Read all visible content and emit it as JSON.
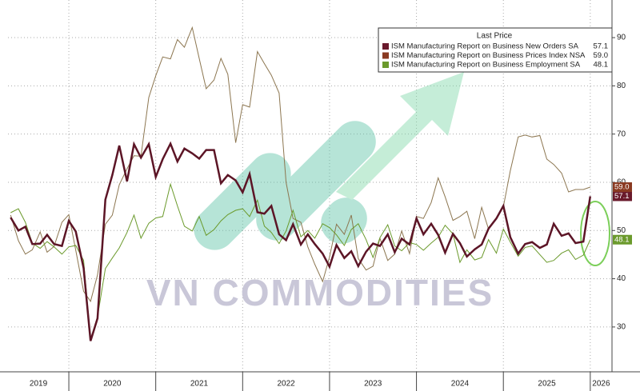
{
  "chart_data": {
    "type": "line",
    "watermark": "VN COMMODITIES",
    "legend_title": "Last Price",
    "x": [
      2019.33,
      2019.42,
      2019.5,
      2019.58,
      2019.67,
      2019.75,
      2019.83,
      2019.92,
      2020,
      2020.08,
      2020.17,
      2020.25,
      2020.33,
      2020.42,
      2020.5,
      2020.58,
      2020.67,
      2020.75,
      2020.83,
      2020.92,
      2021,
      2021.08,
      2021.17,
      2021.25,
      2021.33,
      2021.42,
      2021.5,
      2021.58,
      2021.67,
      2021.75,
      2021.83,
      2021.92,
      2022,
      2022.08,
      2022.17,
      2022.25,
      2022.33,
      2022.42,
      2022.5,
      2022.58,
      2022.67,
      2022.75,
      2022.83,
      2022.92,
      2023,
      2023.08,
      2023.17,
      2023.25,
      2023.33,
      2023.42,
      2023.5,
      2023.58,
      2023.67,
      2023.75,
      2023.83,
      2023.92,
      2024,
      2024.08,
      2024.17,
      2024.25,
      2024.33,
      2024.42,
      2024.5,
      2024.58,
      2024.67,
      2024.75,
      2024.83,
      2024.92,
      2025,
      2025.08,
      2025.17,
      2025.25,
      2025.33,
      2025.42,
      2025.5,
      2025.58,
      2025.67,
      2025.75,
      2025.83,
      2025.92,
      2026
    ],
    "xlim": [
      2019.3,
      2026.25
    ],
    "xticks": [
      2019,
      2020,
      2021,
      2022,
      2023,
      2024,
      2025,
      2026
    ],
    "ylim": [
      20.7,
      97.8
    ],
    "yticks": [
      30,
      40,
      50,
      60,
      70,
      80,
      90
    ],
    "grid": true,
    "series": [
      {
        "name": "ISM Manufacturing Report on Business New Orders SA",
        "color": "#5c1526",
        "last_label": "57.1",
        "values": [
          52.7,
          50.0,
          50.8,
          47.2,
          47.3,
          49.1,
          47.2,
          46.8,
          52.0,
          49.8,
          42.2,
          27.1,
          31.8,
          56.4,
          61.5,
          67.6,
          60.2,
          67.9,
          65.1,
          67.9,
          61.1,
          64.8,
          68.0,
          64.3,
          67.0,
          66.0,
          64.9,
          66.7,
          66.7,
          59.8,
          61.5,
          60.4,
          57.9,
          61.7,
          53.8,
          53.5,
          55.1,
          49.2,
          48.0,
          51.3,
          47.1,
          49.2,
          47.2,
          45.2,
          42.5,
          47.0,
          44.3,
          45.7,
          42.6,
          45.6,
          47.3,
          46.8,
          49.2,
          45.5,
          48.3,
          47.1,
          52.5,
          49.2,
          51.4,
          49.1,
          45.4,
          49.3,
          47.4,
          44.6,
          46.1,
          47.1,
          50.4,
          52.5,
          55.1,
          48.6,
          45.2,
          47.2,
          47.6,
          46.4,
          47.1,
          51.4,
          48.9,
          49.4,
          47.4,
          47.7,
          57.1
        ]
      },
      {
        "name": "ISM Manufacturing Report on Business Prices Index NSA",
        "color": "#8c7650",
        "last_label": "59.0",
        "values": [
          53.2,
          47.9,
          45.1,
          46.0,
          49.7,
          45.5,
          46.7,
          51.7,
          53.3,
          45.9,
          37.4,
          35.3,
          40.8,
          51.3,
          53.2,
          59.5,
          62.8,
          65.5,
          65.4,
          77.6,
          82.1,
          86.0,
          85.6,
          89.6,
          88.0,
          92.1,
          85.7,
          79.4,
          81.2,
          85.7,
          82.4,
          68.2,
          76.1,
          75.6,
          87.1,
          84.6,
          82.2,
          78.5,
          60.0,
          52.5,
          51.7,
          46.6,
          43.0,
          39.4,
          44.5,
          51.3,
          49.2,
          53.2,
          44.2,
          41.8,
          42.6,
          48.4,
          43.8,
          45.1,
          49.9,
          45.2,
          52.9,
          52.5,
          55.8,
          60.9,
          57.0,
          52.1,
          52.9,
          54.0,
          48.3,
          54.8,
          50.3,
          52.5,
          54.9,
          62.4,
          69.4,
          69.8,
          69.4,
          69.7,
          64.8,
          63.7,
          61.9,
          58.0,
          58.5,
          58.5,
          59.0
        ]
      },
      {
        "name": "ISM Manufacturing Report on Business Employment SA",
        "color": "#6b9a2c",
        "last_label": "48.1",
        "values": [
          53.7,
          54.5,
          51.7,
          47.4,
          46.3,
          47.7,
          46.6,
          45.1,
          46.6,
          46.9,
          43.8,
          27.5,
          32.1,
          42.1,
          44.3,
          46.4,
          49.6,
          53.2,
          48.4,
          51.5,
          52.6,
          52.9,
          59.6,
          55.1,
          50.9,
          49.9,
          52.9,
          49.0,
          50.2,
          52.0,
          53.3,
          54.2,
          54.5,
          52.9,
          56.3,
          50.9,
          49.6,
          47.3,
          49.9,
          54.2,
          48.7,
          50.0,
          48.4,
          51.4,
          50.6,
          49.1,
          46.9,
          50.2,
          51.4,
          48.1,
          44.4,
          48.5,
          51.2,
          46.8,
          45.8,
          47.5,
          47.1,
          45.9,
          47.4,
          48.6,
          51.1,
          49.3,
          43.4,
          46.0,
          43.9,
          44.4,
          48.1,
          45.3,
          50.3,
          47.6,
          44.7,
          46.5,
          46.8,
          45.0,
          43.4,
          43.8,
          45.3,
          46.0,
          44.0,
          44.9,
          48.1
        ]
      }
    ]
  }
}
